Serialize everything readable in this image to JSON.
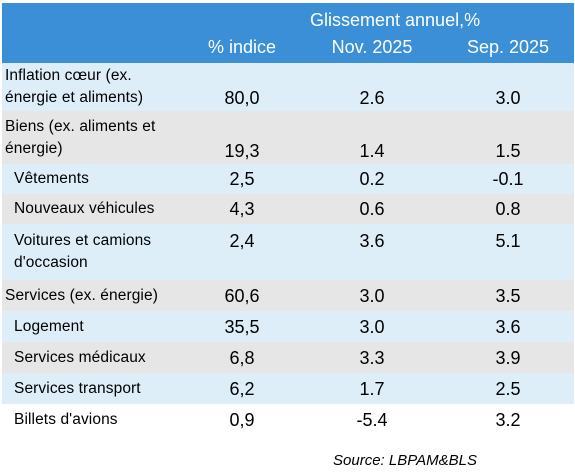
{
  "header": {
    "group_label": "Glissement annuel,%",
    "col_index": "% indice",
    "col_nov": "Nov. 2025",
    "col_sep": "Sep. 2025"
  },
  "rows": [
    {
      "label": "Inflation cœur (ex. énergie et aliments)",
      "index": "80,0",
      "nov": "2.6",
      "sep": "3.0"
    },
    {
      "label": "Biens (ex. aliments et énergie)",
      "index": "19,3",
      "nov": "1.4",
      "sep": "1.5"
    },
    {
      "label": "Vêtements",
      "index": "2,5",
      "nov": "0.2",
      "sep": "-0.1"
    },
    {
      "label": "Nouveaux véhicules",
      "index": "4,3",
      "nov": "0.6",
      "sep": "0.8"
    },
    {
      "label": "Voitures et camions d'occasion",
      "index": "2,4",
      "nov": "3.6",
      "sep": "5.1"
    },
    {
      "label": "Services (ex. énergie)",
      "index": "60,6",
      "nov": "3.0",
      "sep": "3.5"
    },
    {
      "label": "Logement",
      "index": "35,5",
      "nov": "3.0",
      "sep": "3.6"
    },
    {
      "label": "Services médicaux",
      "index": "6,8",
      "nov": "3.3",
      "sep": "3.9"
    },
    {
      "label": "Services transport",
      "index": "6,2",
      "nov": "1.7",
      "sep": "2.5"
    },
    {
      "label": "Billets d'avions",
      "index": "0,9",
      "nov": "-5.4",
      "sep": "3.2"
    }
  ],
  "source": "Source: LBPAM&BLS",
  "colors": {
    "header_bg": "#3b8fd7",
    "row_light_blue": "#deeef9",
    "row_gray": "#e6e6e6"
  }
}
